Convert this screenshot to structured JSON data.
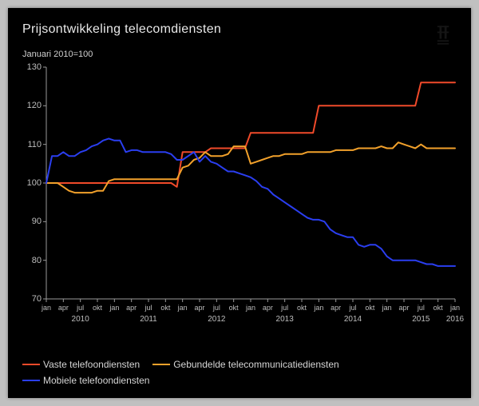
{
  "chart": {
    "type": "line",
    "title": "Prijsontwikkeling telecomdiensten",
    "subtitle": "Januari 2010=100",
    "title_fontsize": 16,
    "subtitle_fontsize": 11,
    "title_color": "#e8e8e8",
    "label_color": "#bdbdbd",
    "background_color": "#000000",
    "frame_background": "#c0c0c0",
    "axis_color": "#9a9a9a",
    "line_width": 2,
    "ylim": [
      70,
      130
    ],
    "ytick_step": 10,
    "yticks": [
      70,
      80,
      90,
      100,
      110,
      120,
      130
    ],
    "x_start_index": 0,
    "x_end_index": 72,
    "xtick_labels_minor": [
      "jan",
      "apr",
      "jul",
      "okt",
      "jan",
      "apr",
      "jul",
      "okt",
      "jan",
      "apr",
      "jul",
      "okt",
      "jan",
      "apr",
      "jul",
      "okt",
      "jan",
      "apr",
      "jul",
      "okt",
      "jan",
      "apr",
      "jul",
      "okt",
      "jan"
    ],
    "xtick_positions_minor": [
      0,
      3,
      6,
      9,
      12,
      15,
      18,
      21,
      24,
      27,
      30,
      33,
      36,
      39,
      42,
      45,
      48,
      51,
      54,
      57,
      60,
      63,
      66,
      69,
      72
    ],
    "xtick_labels_year": [
      "2010",
      "2011",
      "2012",
      "2013",
      "2014",
      "2015",
      "2016"
    ],
    "xtick_positions_year": [
      6,
      18,
      30,
      42,
      54,
      66,
      72
    ],
    "watermark_color": "#555555",
    "series": [
      {
        "name": "Vaste telefoondiensten",
        "color": "#f04a2a",
        "values": [
          100,
          100,
          100,
          100,
          100,
          100,
          100,
          100,
          100,
          100,
          100,
          100,
          100,
          100,
          100,
          100,
          100,
          100,
          100,
          100,
          100,
          100,
          100,
          99,
          108,
          108,
          108,
          108,
          108,
          109,
          109,
          109,
          109,
          109,
          109,
          109,
          113,
          113,
          113,
          113,
          113,
          113,
          113,
          113,
          113,
          113,
          113,
          113,
          120,
          120,
          120,
          120,
          120,
          120,
          120,
          120,
          120,
          120,
          120,
          120,
          120,
          120,
          120,
          120,
          120,
          120,
          126,
          126,
          126,
          126,
          126,
          126,
          126
        ]
      },
      {
        "name": "Gebundelde telecommunicatiediensten",
        "color": "#f2a12b",
        "values": [
          100,
          100,
          100,
          99,
          98,
          97.5,
          97.5,
          97.5,
          97.5,
          98,
          98,
          100.5,
          101,
          101,
          101,
          101,
          101,
          101,
          101,
          101,
          101,
          101,
          101,
          101,
          104,
          104.5,
          106,
          106.5,
          108,
          107,
          107,
          107,
          107.5,
          109.5,
          109.5,
          109.5,
          105,
          105.5,
          106,
          106.5,
          107,
          107,
          107.5,
          107.5,
          107.5,
          107.5,
          108,
          108,
          108,
          108,
          108,
          108.5,
          108.5,
          108.5,
          108.5,
          109,
          109,
          109,
          109,
          109.5,
          109,
          109,
          110.5,
          110,
          109.5,
          109,
          110,
          109,
          109,
          109,
          109,
          109,
          109
        ]
      },
      {
        "name": "Mobiele telefoondiensten",
        "color": "#2a3ef0",
        "values": [
          100,
          107,
          107,
          108,
          107,
          107,
          108,
          108.5,
          109.5,
          110,
          111,
          111.5,
          111,
          111,
          108,
          108.5,
          108.5,
          108,
          108,
          108,
          108,
          108,
          107.5,
          106,
          106,
          107,
          108,
          105.5,
          107,
          105.5,
          105,
          104,
          103,
          103,
          102.5,
          102,
          101.5,
          100.5,
          99,
          98.5,
          97,
          96,
          95,
          94,
          93,
          92,
          91,
          90.5,
          90.5,
          90,
          88,
          87,
          86.5,
          86,
          86,
          84,
          83.5,
          84,
          84,
          83,
          81,
          80,
          80,
          80,
          80,
          80,
          79.5,
          79,
          79,
          78.5,
          78.5,
          78.5,
          78.5
        ]
      }
    ],
    "legend": {
      "fontsize": 12,
      "text_color": "#d5d5d5",
      "swatch_width": 22,
      "swatch_height": 2,
      "rows": [
        [
          0,
          1
        ],
        [
          2
        ]
      ]
    }
  }
}
